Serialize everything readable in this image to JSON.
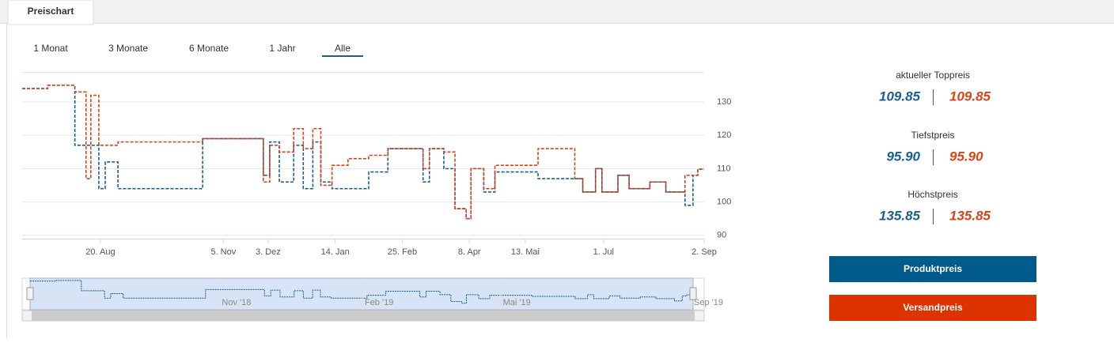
{
  "tab": {
    "label": "Preischart"
  },
  "ranges": [
    "1 Monat",
    "3 Monate",
    "6 Monate",
    "1 Jahr",
    "Alle"
  ],
  "selected_range": 4,
  "stats": [
    {
      "label": "aktueller Toppreis",
      "product": "109.85",
      "shipping": "109.85"
    },
    {
      "label": "Tiefstpreis",
      "product": "95.90",
      "shipping": "95.90"
    },
    {
      "label": "Höchstpreis",
      "product": "135.85",
      "shipping": "135.85"
    }
  ],
  "chart_data": {
    "type": "line",
    "step": true,
    "x": [
      "2018-07-02",
      "2018-07-18",
      "2018-08-04",
      "2018-08-11",
      "2018-08-14",
      "2018-08-19",
      "2018-08-23",
      "2018-08-31",
      "2018-10-23",
      "2018-11-30",
      "2018-12-04",
      "2018-12-10",
      "2018-12-19",
      "2018-12-25",
      "2018-12-31",
      "2019-01-05",
      "2019-01-12",
      "2019-01-22",
      "2019-02-04",
      "2019-02-16",
      "2019-03-10",
      "2019-03-14",
      "2019-03-23",
      "2019-03-30",
      "2019-04-06",
      "2019-04-09",
      "2019-04-17",
      "2019-04-24",
      "2019-05-21",
      "2019-06-13",
      "2019-06-18",
      "2019-06-26",
      "2019-06-30",
      "2019-07-10",
      "2019-07-17",
      "2019-07-30",
      "2019-08-09",
      "2019-08-21",
      "2019-08-26",
      "2019-08-29",
      "2019-09-02"
    ],
    "series": [
      {
        "name": "Produktpreis",
        "color": "#1b5e8c",
        "values": [
          134,
          135,
          117,
          117,
          117,
          104,
          112,
          104,
          119,
          108,
          118,
          106,
          117,
          104,
          118,
          106,
          104,
          104,
          109,
          116,
          106,
          116,
          110,
          98,
          95,
          110,
          103,
          109,
          107,
          107,
          103,
          110,
          103,
          108,
          104,
          106,
          103,
          99,
          108,
          109.85,
          109.85
        ]
      },
      {
        "name": "Versandpreis",
        "color": "#d6441a",
        "values": [
          134,
          135,
          133,
          107,
          132,
          117,
          117,
          118,
          119,
          106,
          117,
          115,
          122,
          116,
          122,
          105,
          111,
          113,
          114,
          116,
          110,
          116,
          115,
          98,
          95,
          110,
          104,
          111,
          116,
          107,
          103,
          110,
          103,
          108,
          104,
          106,
          103,
          108,
          108,
          109.85,
          109.85
        ]
      }
    ],
    "xlim": [
      "2018-07-02",
      "2019-09-02"
    ],
    "xticks": [
      {
        "value": "2018-08-20",
        "label": "20. Aug"
      },
      {
        "value": "2018-11-05",
        "label": "5. Nov"
      },
      {
        "value": "2018-12-03",
        "label": "3. Dez"
      },
      {
        "value": "2019-01-14",
        "label": "14. Jan"
      },
      {
        "value": "2019-02-25",
        "label": "25. Feb"
      },
      {
        "value": "2019-04-08",
        "label": "8. Apr"
      },
      {
        "value": "2019-05-13",
        "label": "13. Mai"
      },
      {
        "value": "2019-07-01",
        "label": "1. Jul"
      },
      {
        "value": "2019-09-02",
        "label": "2. Sep"
      }
    ],
    "ylim": [
      89,
      139
    ],
    "yticks": [
      90,
      100,
      110,
      120,
      130
    ],
    "grid": true,
    "navigator_ticks": [
      {
        "value": "2018-11-01",
        "label": "Nov '18"
      },
      {
        "value": "2019-02-01",
        "label": "Feb '19"
      },
      {
        "value": "2019-05-01",
        "label": "Mai '19"
      },
      {
        "value": "2019-09-01",
        "label": "Sep '19"
      }
    ]
  }
}
